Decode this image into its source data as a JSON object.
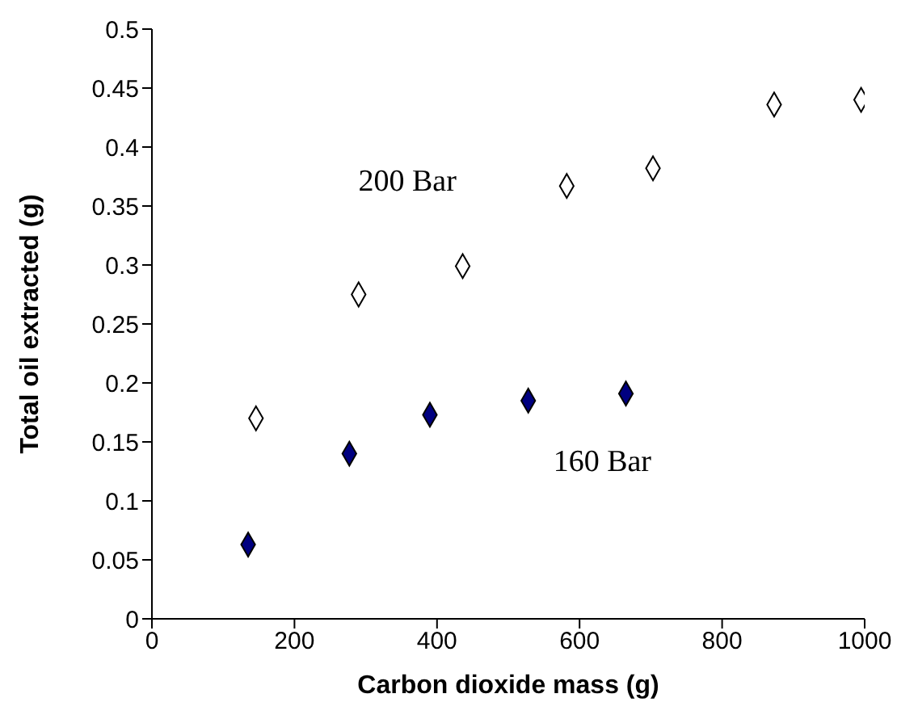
{
  "chart_data": {
    "type": "scatter",
    "xlabel": "Carbon dioxide mass (g)",
    "ylabel": "Total oil extracted (g)",
    "xlim": [
      0,
      1000
    ],
    "xticks": [
      0,
      200,
      400,
      600,
      800,
      1000
    ],
    "ylim": [
      0,
      0.5
    ],
    "yticks": [
      0,
      0.05,
      0.1,
      0.15,
      0.2,
      0.25,
      0.3,
      0.35,
      0.4,
      0.45,
      0.5
    ],
    "grid": false,
    "legend": false,
    "marker": "diamond",
    "series": [
      {
        "name": "200 Bar",
        "color": "#ffffff",
        "x": [
          146,
          290,
          436,
          582,
          703,
          873,
          995
        ],
        "values": [
          0.17,
          0.275,
          0.299,
          0.367,
          0.382,
          0.436,
          0.44
        ]
      },
      {
        "name": "160 Bar",
        "color": "#000080",
        "x": [
          135,
          277,
          390,
          528,
          665
        ],
        "values": [
          0.063,
          0.14,
          0.173,
          0.185,
          0.191
        ]
      }
    ]
  }
}
